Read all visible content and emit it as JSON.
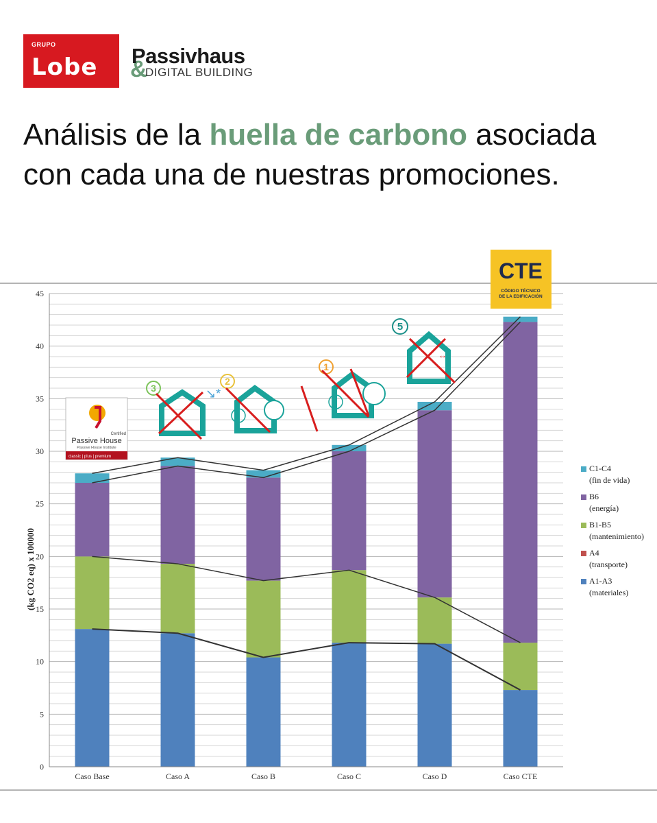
{
  "header": {
    "lobe_logo": {
      "top": "GRUPO",
      "name": "Lobe"
    },
    "partner_logo": {
      "amp": "&",
      "title": "Passivhaus",
      "subtitle": "DIGITAL BUILDING"
    },
    "headline": {
      "prefix": "Análisis de la ",
      "highlight": "huella de carbono",
      "suffix": " asociada con cada una de nuestras promociones."
    }
  },
  "badges": {
    "passive_house": {
      "certified": "Certified",
      "name": "Passive House",
      "institute": "Passive House Institute",
      "class": "classic | plus | premium"
    },
    "cte": {
      "title": "CTE",
      "line1": "CÓDIGO TÉCNICO",
      "line2": "DE LA EDIFICACIÓN"
    }
  },
  "chart_data": {
    "type": "bar",
    "stacked": true,
    "title": "",
    "xlabel": "",
    "ylabel": "(kg CO2 eq)    x 100000",
    "ylim": [
      0,
      45
    ],
    "yticks": [
      0,
      5,
      10,
      15,
      20,
      25,
      30,
      35,
      40,
      45
    ],
    "grid": true,
    "legend_position": "right",
    "categories": [
      "Caso Base",
      "Caso A",
      "Caso B",
      "Caso C",
      "Caso D",
      "Caso CTE"
    ],
    "series": [
      {
        "name": "A1-A3",
        "desc": "(materiales)",
        "color": "#4f81bd",
        "values": [
          13.1,
          12.7,
          10.4,
          11.8,
          11.7,
          7.3
        ]
      },
      {
        "name": "A4",
        "desc": "(transporte)",
        "color": "#c0504d",
        "values": [
          0,
          0,
          0,
          0,
          0,
          0
        ]
      },
      {
        "name": "B1-B5",
        "desc": "(mantenimiento)",
        "color": "#9bbb59",
        "values": [
          6.9,
          6.6,
          7.3,
          6.9,
          4.4,
          4.5
        ]
      },
      {
        "name": "B6",
        "desc": "(energía)",
        "color": "#8064a2",
        "values": [
          7.0,
          9.3,
          9.8,
          11.3,
          17.8,
          30.5
        ]
      },
      {
        "name": "C1-C4",
        "desc": "(fin de vida)",
        "color": "#4bacc6",
        "values": [
          0.9,
          0.8,
          0.7,
          0.6,
          0.8,
          0.5
        ]
      }
    ],
    "annotation_numbers": [
      "3",
      "2",
      "1",
      "5"
    ]
  }
}
